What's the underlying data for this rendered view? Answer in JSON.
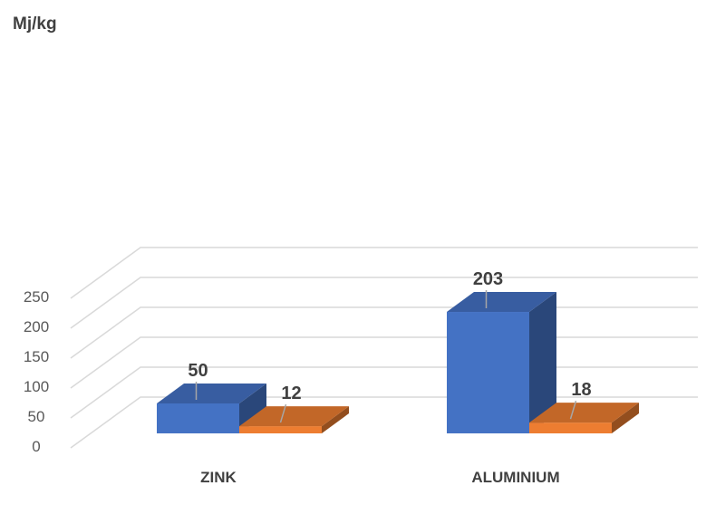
{
  "chart_data": {
    "type": "bar",
    "style": "3d-clustered-column",
    "unit_label": "Mj/kg",
    "categories": [
      "ZINK",
      "ALUMINIUM"
    ],
    "series": [
      {
        "values": [
          50,
          203
        ],
        "color": "#4472c4"
      },
      {
        "values": [
          12,
          18
        ],
        "color": "#ed7d31"
      }
    ],
    "ylim": [
      0,
      250
    ],
    "yticks": [
      "0",
      "50",
      "100",
      "150",
      "200",
      "250"
    ],
    "data_labels": true,
    "grid": true,
    "legend": "none"
  }
}
